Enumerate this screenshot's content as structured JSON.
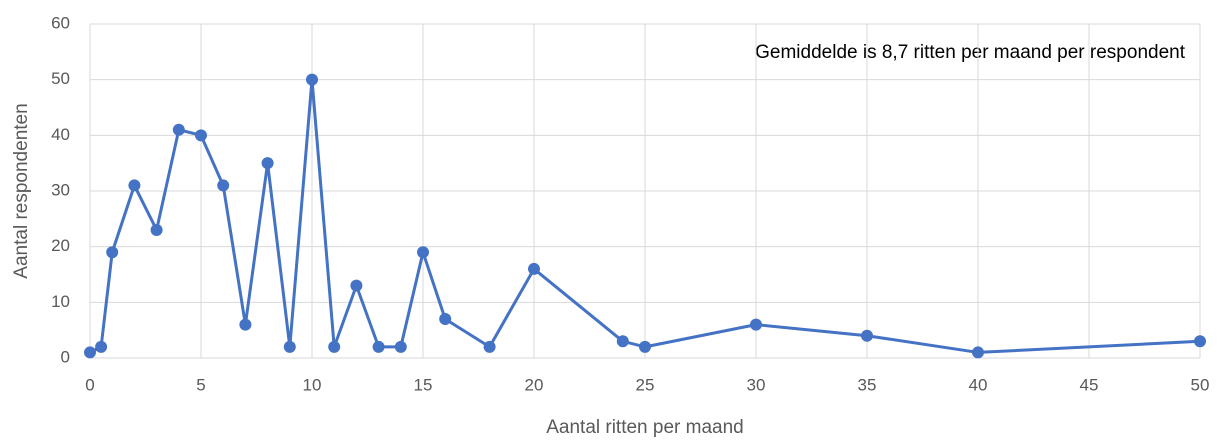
{
  "chart_data": {
    "type": "line",
    "annotation": "Gemiddelde is 8,7 ritten per maand per respondent",
    "x_label": "Aantal ritten per maand",
    "y_label": "Aantal respondenten",
    "x": [
      0,
      0.5,
      1,
      2,
      3,
      4,
      5,
      6,
      7,
      8,
      9,
      10,
      11,
      12,
      13,
      14,
      15,
      16,
      18,
      20,
      24,
      25,
      30,
      35,
      40,
      50
    ],
    "series": [
      {
        "name": "Aantal respondenten",
        "color": "#4472c4",
        "values": [
          1,
          2,
          19,
          31,
          23,
          41,
          40,
          31,
          6,
          35,
          2,
          50,
          2,
          13,
          2,
          2,
          19,
          7,
          2,
          16,
          3,
          2,
          6,
          4,
          1,
          3
        ]
      }
    ],
    "xlim": [
      0,
      50
    ],
    "xticks": [
      0,
      5,
      10,
      15,
      20,
      25,
      30,
      35,
      40,
      45,
      50
    ],
    "ylim": [
      0,
      60
    ],
    "yticks": [
      0,
      10,
      20,
      30,
      40,
      50,
      60
    ],
    "grid": true
  }
}
